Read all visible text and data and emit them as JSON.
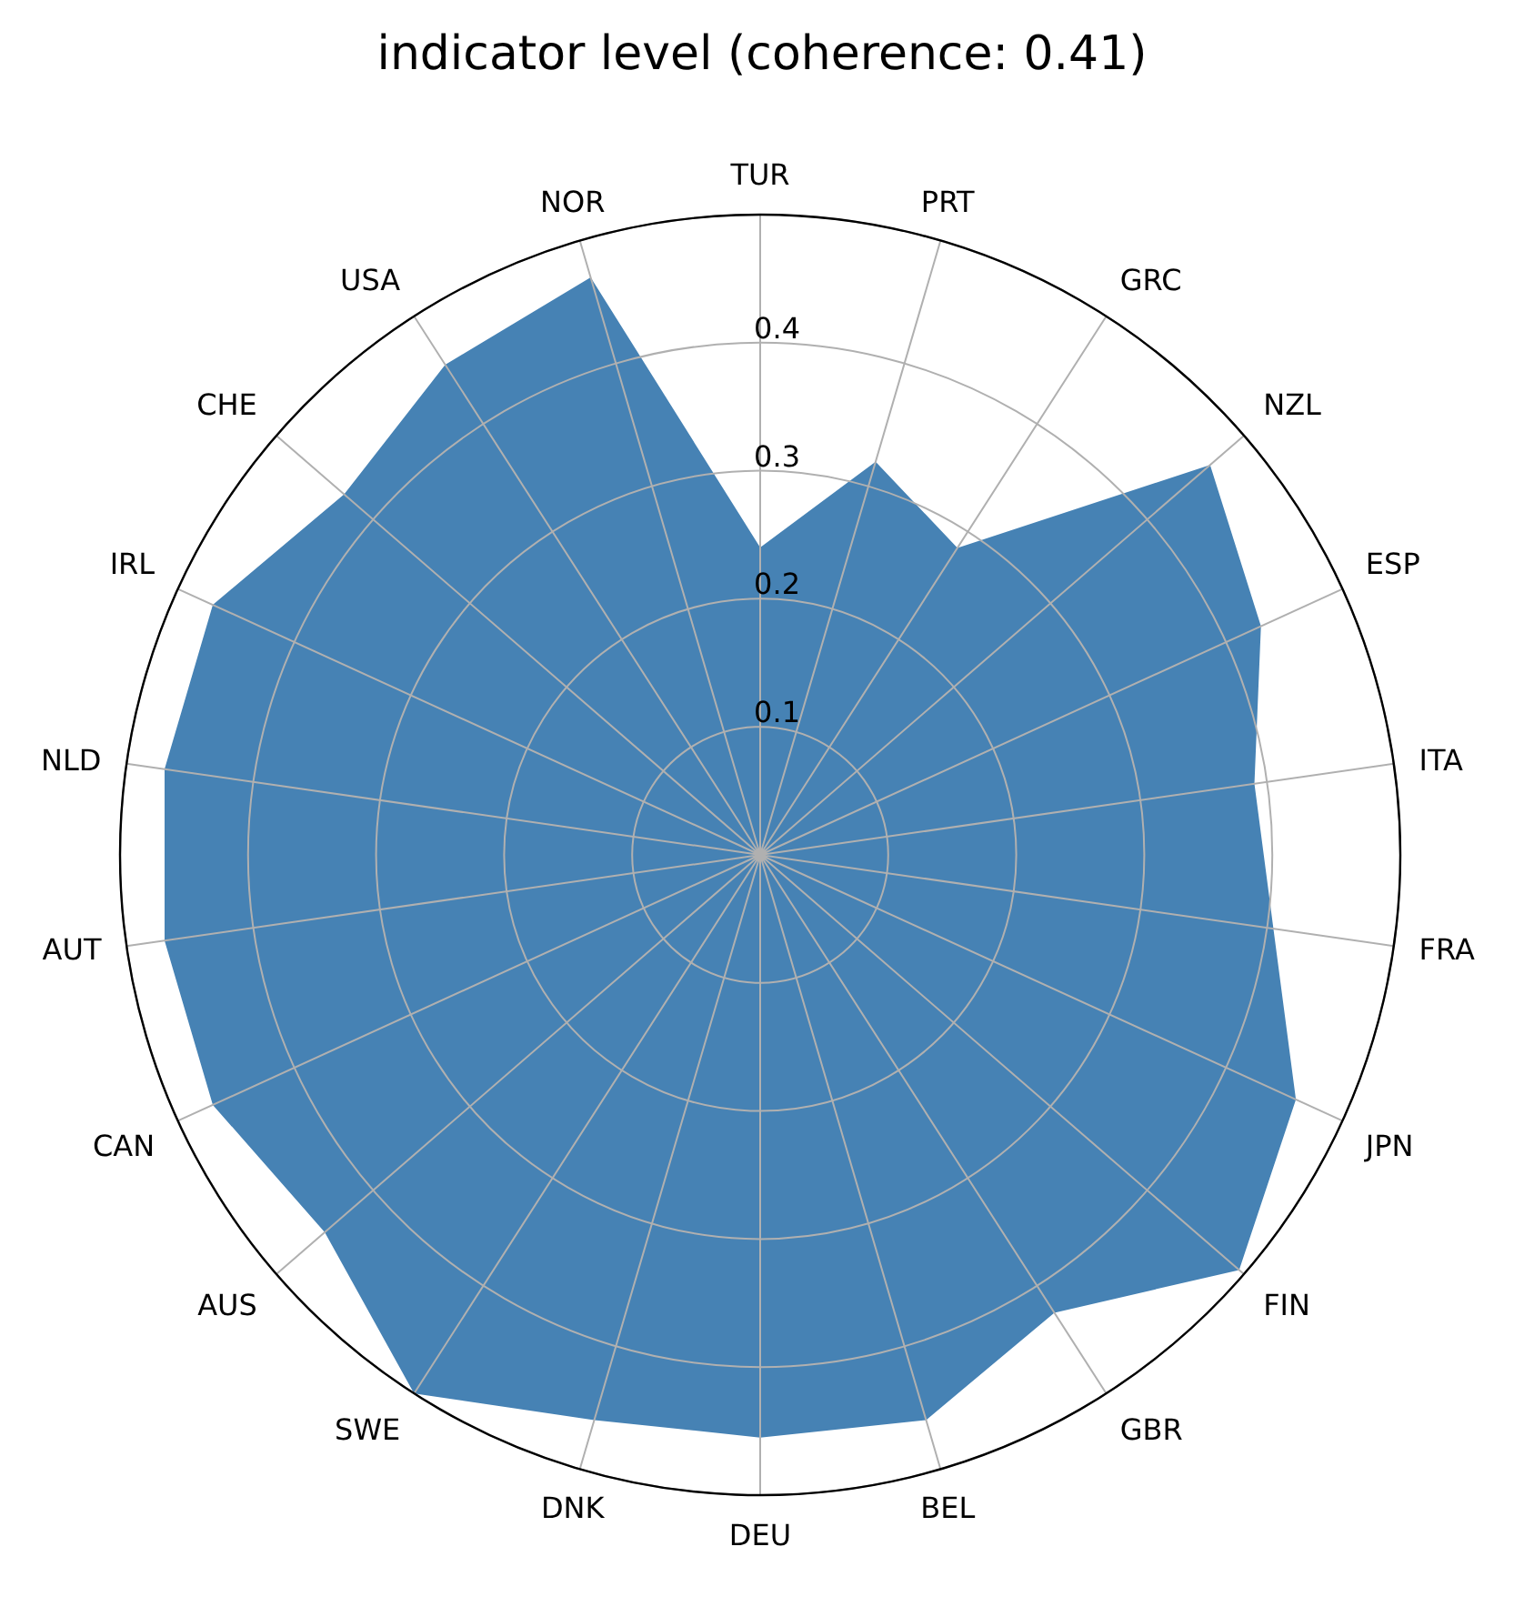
{
  "chart_data": {
    "type": "radar",
    "title": "indicator level (coherence: 0.41)",
    "categories": [
      "TUR",
      "PRT",
      "GRC",
      "NZL",
      "ESP",
      "ITA",
      "FRA",
      "JPN",
      "FIN",
      "GBR",
      "BEL",
      "DEU",
      "DNK",
      "SWE",
      "AUS",
      "CAN",
      "AUT",
      "NLD",
      "IRL",
      "CHE",
      "USA",
      "NOR"
    ],
    "series": [
      {
        "color": "#4682b4",
        "values": [
          0.24,
          0.32,
          0.285,
          0.465,
          0.43,
          0.39,
          0.405,
          0.46,
          0.495,
          0.425,
          0.46,
          0.455,
          0.46,
          0.5,
          0.45,
          0.47,
          0.47,
          0.47,
          0.47,
          0.43,
          0.455,
          0.47
        ]
      }
    ],
    "ylim": [
      0,
      0.5
    ],
    "yticks": [
      0.1,
      0.2,
      0.3,
      0.4
    ],
    "grid": true,
    "marker": "none"
  }
}
